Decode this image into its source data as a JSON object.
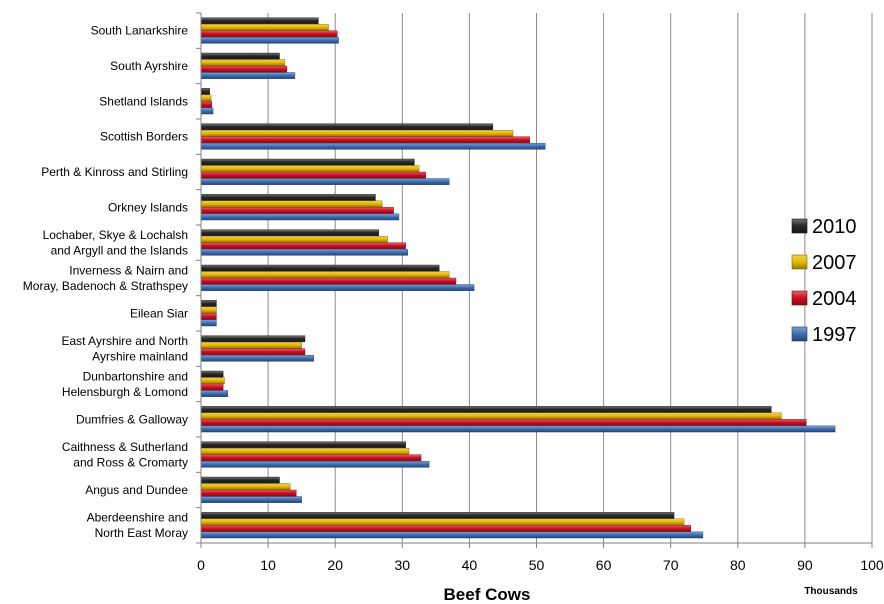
{
  "chart_data": {
    "type": "bar",
    "orientation": "horizontal",
    "xlabel": "Beef Cows",
    "unit_label": "Thousands",
    "xlim": [
      0,
      100
    ],
    "xticks": [
      0,
      10,
      20,
      30,
      40,
      50,
      60,
      70,
      80,
      90,
      100
    ],
    "grid": true,
    "legend_position": "right",
    "categories": [
      [
        "South Lanarkshire"
      ],
      [
        "South Ayrshire"
      ],
      [
        "Shetland Islands"
      ],
      [
        "Scottish Borders"
      ],
      [
        "Perth & Kinross and Stirling"
      ],
      [
        "Orkney Islands"
      ],
      [
        "Lochaber, Skye & Lochalsh",
        "and Argyll and the Islands"
      ],
      [
        "Inverness & Nairn and",
        "Moray, Badenoch & Strathspey"
      ],
      [
        "Eilean Siar"
      ],
      [
        "East Ayrshire and North",
        "Ayrshire mainland"
      ],
      [
        "Dunbartonshire and",
        "Helensburgh & Lomond"
      ],
      [
        "Dumfries & Galloway"
      ],
      [
        "Caithness & Sutherland",
        "and Ross & Cromarty"
      ],
      [
        "Angus and Dundee"
      ],
      [
        "Aberdeenshire and",
        "North East Moray"
      ]
    ],
    "series": [
      {
        "name": "2010",
        "color": "#262626",
        "values": [
          17.5,
          11.7,
          1.3,
          43.5,
          31.8,
          26.0,
          26.5,
          35.5,
          2.3,
          15.5,
          3.3,
          85.0,
          30.5,
          11.7,
          70.5
        ]
      },
      {
        "name": "2007",
        "color": "#e6b800",
        "values": [
          19.0,
          12.5,
          1.5,
          46.5,
          32.5,
          27.0,
          27.8,
          37.0,
          2.3,
          15.0,
          3.5,
          86.5,
          31.0,
          13.3,
          72.0
        ]
      },
      {
        "name": "2004",
        "color": "#d10d1f",
        "values": [
          20.3,
          12.8,
          1.6,
          49.0,
          33.5,
          28.7,
          30.5,
          38.0,
          2.3,
          15.5,
          3.3,
          90.2,
          32.8,
          14.2,
          73.0
        ]
      },
      {
        "name": "1997",
        "color": "#3b6db3",
        "values": [
          20.5,
          14.0,
          1.8,
          51.3,
          37.0,
          29.5,
          30.8,
          40.7,
          2.3,
          16.8,
          4.0,
          94.5,
          34.0,
          15.0,
          74.8
        ]
      }
    ],
    "legend_order": [
      "2010",
      "2007",
      "2004",
      "1997"
    ]
  }
}
